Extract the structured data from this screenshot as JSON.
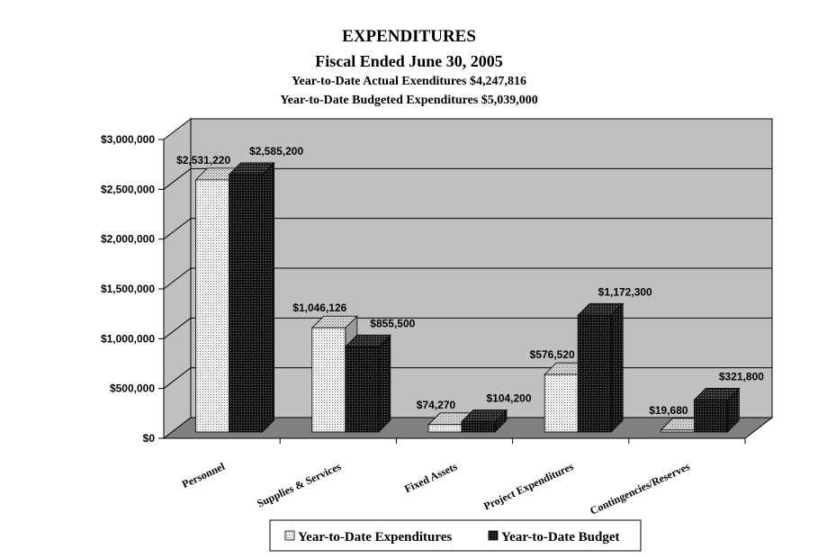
{
  "title": "EXPENDITURES",
  "subtitle": "Fiscal  Ended June 30, 2005",
  "line3": "Year-to-Date Actual Exenditures $4,247,816",
  "line4": "Year-to-Date Budgeted Expenditures $5,039,000",
  "chart_data": {
    "type": "bar",
    "categories": [
      "Personnel",
      "Supplies & Services",
      "Fixed Assets",
      "Project Expenditures",
      "Contingencies/Reserves"
    ],
    "series": [
      {
        "name": "Year-to-Date Expenditures",
        "values": [
          2531220,
          1046126,
          74270,
          576520,
          19680
        ],
        "labels": [
          "$2,531,220",
          "$1,046,126",
          "$74,270",
          "$576,520",
          "$19,680"
        ],
        "color": "#ffffff"
      },
      {
        "name": "Year-to-Date Budget",
        "values": [
          2585200,
          855500,
          104200,
          1172300,
          321800
        ],
        "labels": [
          "$2,585,200",
          "$855,500",
          "$104,200",
          "$1,172,300",
          "$321,800"
        ],
        "color": "#111111"
      }
    ],
    "yticks": [
      "$0",
      "$500,000",
      "$1,000,000",
      "$1,500,000",
      "$2,000,000",
      "$2,500,000",
      "$3,000,000"
    ],
    "ylim": [
      0,
      3000000
    ],
    "grid": true,
    "wall_color": "#c0c0c0",
    "floor_color": "#808080",
    "legend_position": "bottom"
  }
}
